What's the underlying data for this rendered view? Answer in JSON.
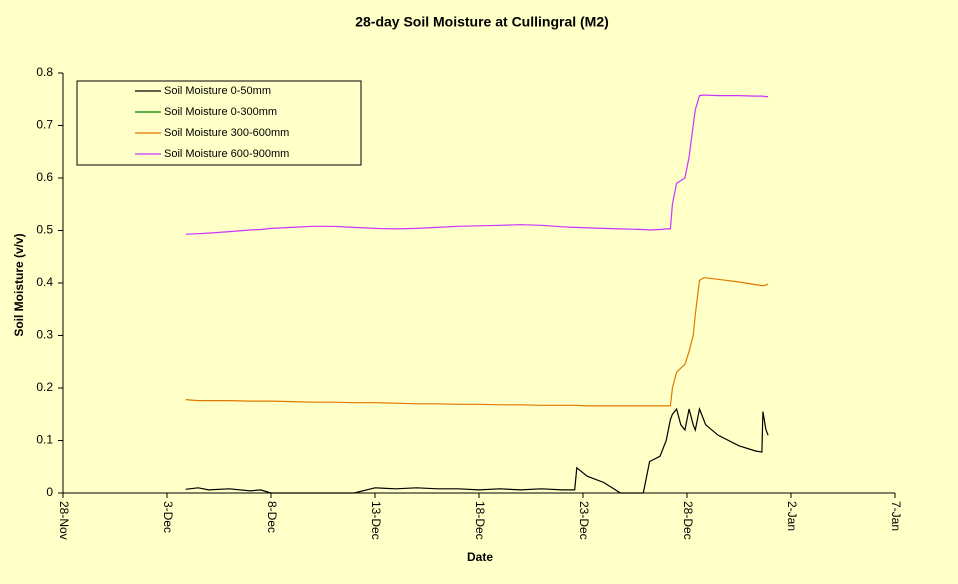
{
  "chart_data": {
    "type": "line",
    "title": "28-day Soil Moisture  at Cullingral (M2)",
    "x_label": "Date",
    "y_label": "Soil Moisture  (v/v)",
    "x": [
      5.9,
      6.5,
      7,
      8,
      9,
      9.5,
      10,
      11,
      12,
      13,
      14,
      15,
      16,
      17,
      18,
      19,
      20,
      21,
      22,
      23,
      24,
      24.6,
      24.7,
      25.2,
      26,
      26.8,
      27.9,
      28.2,
      28.7,
      29.0,
      29.2,
      29.3,
      29.5,
      29.7,
      29.9,
      30.1,
      30.3,
      30.4,
      30.6,
      30.8,
      30.9,
      31.5,
      32.5,
      33.3,
      33.6,
      33.65,
      33.8,
      33.9
    ],
    "series": [
      {
        "name": "Soil Moisture 0-50mm",
        "color": "#000000",
        "values": [
          0.007,
          0.01,
          0.006,
          0.008,
          0.004,
          0.006,
          0,
          0,
          0,
          0,
          0,
          0.01,
          0.008,
          0.01,
          0.008,
          0.008,
          0.006,
          0.008,
          0.006,
          0.008,
          0.006,
          0.006,
          0.048,
          0.032,
          0.02,
          0,
          0,
          0.06,
          0.07,
          0.1,
          0.14,
          0.15,
          0.16,
          0.13,
          0.12,
          0.16,
          0.13,
          0.12,
          0.16,
          0.14,
          0.13,
          0.11,
          0.09,
          0.08,
          0.078,
          0.155,
          0.12,
          0.11
        ]
      },
      {
        "name": "Soil Moisture 0-300mm",
        "color": "#008000",
        "values": [
          null,
          null,
          null,
          null,
          null,
          null,
          null,
          null,
          null,
          null,
          null,
          null,
          null,
          null,
          null,
          null,
          null,
          null,
          null,
          null,
          null,
          null,
          null,
          null,
          null,
          null,
          null,
          null,
          null,
          null,
          null,
          null,
          null,
          null,
          null,
          null,
          null,
          null,
          null,
          null,
          null,
          null,
          null,
          null,
          null,
          null,
          null,
          null
        ]
      },
      {
        "name": "Soil Moisture 300-600mm",
        "color": "#e07800",
        "values": [
          0.178,
          0.176,
          0.176,
          0.176,
          0.175,
          0.175,
          0.175,
          0.174,
          0.173,
          0.173,
          0.172,
          0.172,
          0.171,
          0.17,
          0.17,
          0.169,
          0.169,
          0.168,
          0.168,
          0.167,
          0.167,
          0.167,
          0.167,
          0.166,
          0.166,
          0.166,
          0.166,
          0.166,
          0.166,
          0.166,
          0.166,
          0.2,
          0.23,
          0.238,
          0.245,
          0.27,
          0.3,
          0.34,
          0.405,
          0.41,
          0.41,
          0.407,
          0.402,
          0.397,
          0.395,
          0.395,
          0.396,
          0.398
        ]
      },
      {
        "name": "Soil Moisture 600-900mm",
        "color": "#cc33ff",
        "values": [
          0.493,
          0.494,
          0.495,
          0.498,
          0.501,
          0.502,
          0.504,
          0.506,
          0.508,
          0.508,
          0.506,
          0.504,
          0.503,
          0.504,
          0.506,
          0.508,
          0.509,
          0.51,
          0.511,
          0.51,
          0.507,
          0.506,
          0.506,
          0.505,
          0.504,
          0.503,
          0.502,
          0.501,
          0.502,
          0.503,
          0.503,
          0.55,
          0.59,
          0.595,
          0.6,
          0.64,
          0.7,
          0.73,
          0.757,
          0.758,
          0.758,
          0.757,
          0.757,
          0.756,
          0.756,
          0.756,
          0.755,
          0.755
        ]
      }
    ],
    "xlim": [
      0,
      40
    ],
    "xticks": [
      {
        "value": 0,
        "label": "28-Nov"
      },
      {
        "value": 5,
        "label": "3-Dec"
      },
      {
        "value": 10,
        "label": "8-Dec"
      },
      {
        "value": 15,
        "label": "13-Dec"
      },
      {
        "value": 20,
        "label": "18-Dec"
      },
      {
        "value": 25,
        "label": "23-Dec"
      },
      {
        "value": 30,
        "label": "28-Dec"
      },
      {
        "value": 35,
        "label": "2-Jan"
      },
      {
        "value": 40,
        "label": "7-Jan"
      }
    ],
    "ylim": [
      0,
      0.8
    ],
    "yticks": [
      0,
      0.1,
      0.2,
      0.3,
      0.4,
      0.5,
      0.6,
      0.7,
      0.8
    ],
    "grid": false,
    "legend": "upper left"
  }
}
